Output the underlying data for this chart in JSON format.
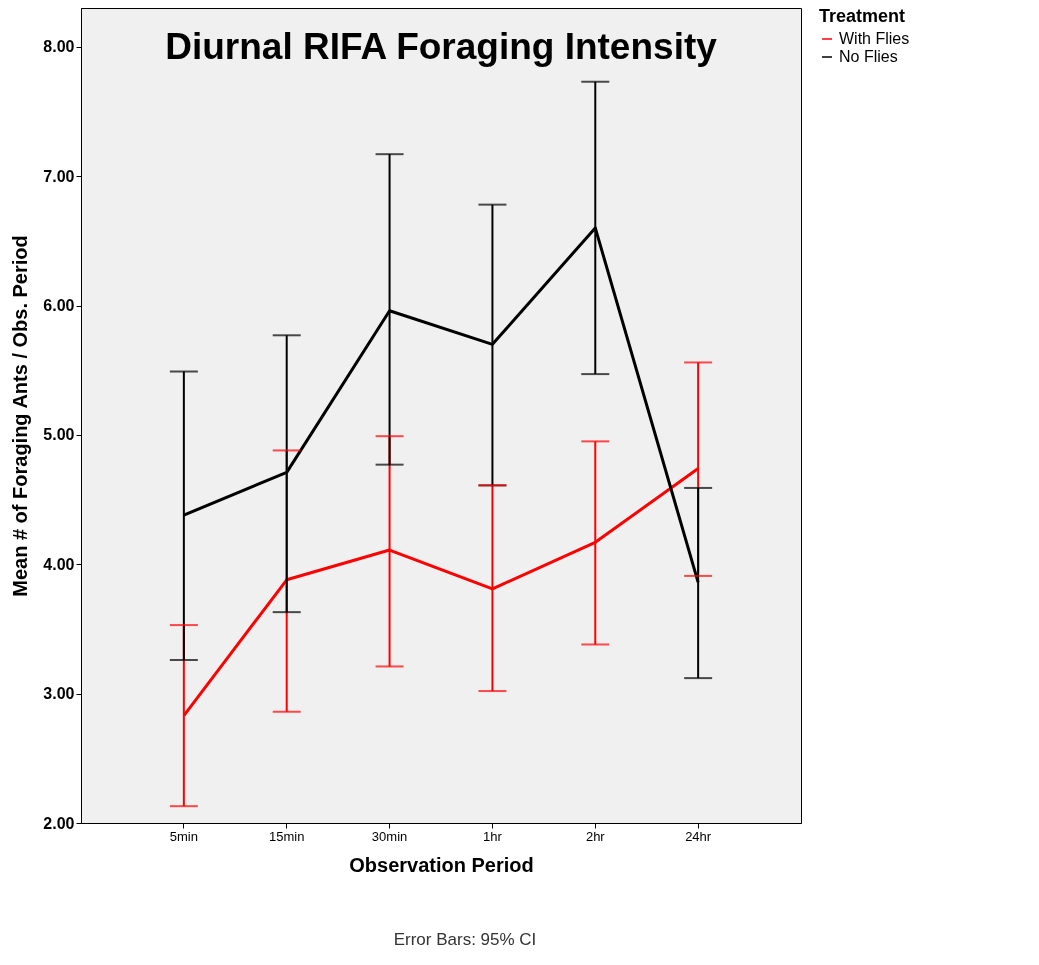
{
  "chart_data": {
    "type": "line",
    "title": "Diurnal RIFA Foraging Intensity",
    "xlabel": "Observation Period",
    "ylabel": "Mean # of Foraging Ants / Obs. Period",
    "legend_title": "Treatment",
    "categories": [
      "5min",
      "15min",
      "30min",
      "1hr",
      "2hr",
      "24hr"
    ],
    "series": [
      {
        "name": "With Flies",
        "color": "#ff0000",
        "values": [
          2.83,
          3.88,
          4.11,
          3.81,
          4.17,
          4.74
        ],
        "errors": [
          [
            2.13,
            3.53
          ],
          [
            2.86,
            4.88
          ],
          [
            3.21,
            4.99
          ],
          [
            3.02,
            4.61
          ],
          [
            3.38,
            4.95
          ],
          [
            3.91,
            5.56
          ]
        ]
      },
      {
        "name": "No Flies",
        "color": "#000000",
        "values": [
          4.38,
          4.71,
          5.96,
          5.7,
          6.6,
          3.86
        ],
        "errors": [
          [
            3.26,
            5.49
          ],
          [
            3.63,
            5.77
          ],
          [
            4.77,
            7.17
          ],
          [
            4.61,
            6.78
          ],
          [
            5.47,
            7.73
          ],
          [
            3.12,
            4.59
          ]
        ]
      }
    ],
    "ylim": [
      2,
      8.3
    ],
    "yticks": [
      {
        "value": 2,
        "label": "2.00"
      },
      {
        "value": 3,
        "label": "3.00"
      },
      {
        "value": 4,
        "label": "4.00"
      },
      {
        "value": 5,
        "label": "5.00"
      },
      {
        "value": 6,
        "label": "6.00"
      },
      {
        "value": 7,
        "label": "7.00"
      },
      {
        "value": 8,
        "label": "8.00"
      }
    ],
    "grid": false,
    "legend": "top right",
    "marker": "none",
    "line_style": "solid",
    "annotations": [
      "Error Bars: 95% CI"
    ]
  }
}
